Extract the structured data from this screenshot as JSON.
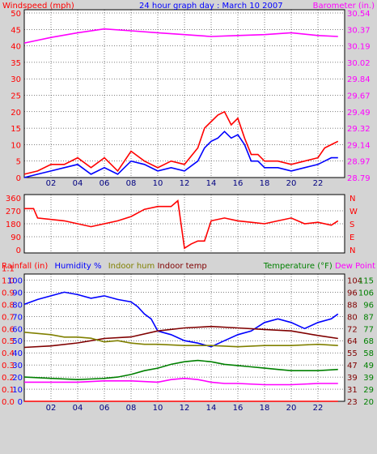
{
  "chart_data": [
    {
      "type": "line",
      "title": "24 hour graph day : March 10 2007",
      "left_label": "Windspeed (mph)",
      "right_label": "Barometer (in.)",
      "x_ticks": [
        "02",
        "04",
        "06",
        "08",
        "10",
        "12",
        "14",
        "16",
        "18",
        "20",
        "22"
      ],
      "left_ticks": [
        "0",
        "5",
        "10",
        "15",
        "20",
        "25",
        "30",
        "35",
        "40",
        "45",
        "50"
      ],
      "right_ticks": [
        "28.79",
        "28.97",
        "29.14",
        "29.32",
        "29.49",
        "29.67",
        "29.84",
        "30.02",
        "30.19",
        "30.37",
        "30.54"
      ],
      "ylim": [
        0,
        50
      ],
      "right_ylim": [
        28.79,
        30.54
      ],
      "series": [
        {
          "color": "#ff00ff",
          "x": [
            0,
            2,
            4,
            6,
            8,
            10,
            12,
            14,
            16,
            18,
            20,
            22,
            23.5
          ],
          "values": [
            30.22,
            30.28,
            30.33,
            30.37,
            30.35,
            30.33,
            30.31,
            30.29,
            30.3,
            30.31,
            30.33,
            30.3,
            30.29
          ]
        },
        {
          "color": "#ff0000",
          "x": [
            0,
            1,
            2,
            3,
            4,
            5,
            6,
            7,
            8,
            9,
            10,
            11,
            12,
            13,
            13.5,
            14,
            14.5,
            15,
            15.5,
            16,
            16.5,
            17,
            17.5,
            18,
            19,
            20,
            21,
            22,
            22.5,
            23,
            23.5
          ],
          "values": [
            1,
            2,
            4,
            4,
            6,
            3,
            6,
            2,
            8,
            5,
            3,
            5,
            4,
            9,
            15,
            17,
            19,
            20,
            16,
            18,
            12,
            7,
            7,
            5,
            5,
            4,
            5,
            6,
            9,
            10,
            11
          ]
        },
        {
          "color": "#0000ff",
          "x": [
            0,
            1,
            2,
            3,
            4,
            5,
            6,
            7,
            8,
            9,
            10,
            11,
            12,
            13,
            13.5,
            14,
            14.5,
            15,
            15.5,
            16,
            16.5,
            17,
            17.5,
            18,
            19,
            20,
            21,
            22,
            22.5,
            23,
            23.5
          ],
          "values": [
            0,
            1,
            2,
            3,
            4,
            1,
            3,
            1,
            5,
            4,
            2,
            3,
            2,
            5,
            9,
            11,
            12,
            14,
            12,
            13,
            10,
            5,
            5,
            3,
            3,
            2,
            3,
            4,
            5,
            6,
            6
          ]
        }
      ]
    },
    {
      "type": "line",
      "left_ticks": [
        "360",
        "270",
        "180",
        "90",
        "0"
      ],
      "right_ticks": [
        "N",
        "W",
        "S",
        "E",
        "N"
      ],
      "ylim": [
        0,
        360
      ],
      "series": [
        {
          "color": "#ff0000",
          "x": [
            0,
            0.7,
            1,
            3,
            5,
            7,
            8,
            9,
            10,
            11,
            11.5,
            12,
            12.5,
            13,
            13.5,
            14,
            15,
            16,
            17,
            18,
            19,
            20,
            21,
            22,
            23,
            23.5
          ],
          "values": [
            285,
            285,
            220,
            200,
            160,
            200,
            230,
            280,
            300,
            300,
            340,
            10,
            40,
            60,
            60,
            200,
            220,
            200,
            190,
            180,
            200,
            220,
            180,
            190,
            170,
            200
          ]
        }
      ]
    },
    {
      "type": "line",
      "legend_left": [
        {
          "label": "Rainfall (in)",
          "color": "#ff0000"
        },
        {
          "label": "Humidity %",
          "color": "#0000ff"
        },
        {
          "label": "Indoor hum",
          "color": "#808000"
        },
        {
          "label": "Indoor temp",
          "color": "#800000"
        }
      ],
      "legend_right": [
        {
          "label": "Temperature (°F)",
          "color": "#008000"
        },
        {
          "label": "Dew Point",
          "color": "#ff00ff"
        }
      ],
      "x_ticks": [
        "02",
        "04",
        "06",
        "08",
        "10",
        "12",
        "14",
        "16",
        "18",
        "20",
        "22"
      ],
      "rain_ticks": [
        "0.0",
        "0.1",
        "0.2",
        "0.3",
        "0.4",
        "0.5",
        "0.6",
        "0.7",
        "0.8",
        "0.9",
        "1.0",
        "1.1"
      ],
      "humidity_ticks": [
        "0",
        "10",
        "20",
        "30",
        "40",
        "50",
        "60",
        "70",
        "80",
        "90",
        "100"
      ],
      "indoor_temp_ticks": [
        "23",
        "31",
        "39",
        "47",
        "55",
        "64",
        "72",
        "80",
        "88",
        "96",
        "104"
      ],
      "temp_ticks": [
        "20",
        "29",
        "39",
        "49",
        "58",
        "68",
        "77",
        "87",
        "96",
        "106",
        "115"
      ],
      "series": [
        {
          "color": "#0000ff",
          "x": [
            0,
            1,
            2,
            3,
            4,
            5,
            6,
            7,
            8,
            8.5,
            9,
            9.5,
            10,
            11,
            12,
            13,
            14,
            15,
            16,
            17,
            18,
            19,
            20,
            21,
            22,
            23,
            23.5
          ],
          "values": [
            80,
            84,
            87,
            90,
            88,
            85,
            87,
            84,
            82,
            78,
            72,
            68,
            58,
            55,
            50,
            48,
            45,
            50,
            55,
            58,
            65,
            68,
            65,
            60,
            65,
            68,
            72
          ]
        },
        {
          "color": "#800000",
          "x": [
            0,
            2,
            4,
            6,
            8,
            10,
            12,
            14,
            16,
            18,
            20,
            22,
            23.5
          ],
          "values": [
            59,
            60,
            62,
            65,
            66,
            70,
            72,
            73,
            72,
            71,
            70,
            67,
            65
          ]
        },
        {
          "color": "#808000",
          "x": [
            0,
            1,
            2,
            3,
            4,
            5,
            6,
            7,
            8,
            9,
            10,
            12,
            14,
            16,
            18,
            20,
            22,
            23.5
          ],
          "values": [
            57,
            56,
            55,
            53,
            53,
            52,
            49,
            50,
            48,
            47,
            47,
            46,
            46,
            45,
            46,
            46,
            47,
            46
          ]
        },
        {
          "color": "#008000",
          "x": [
            0,
            2,
            4,
            6,
            7,
            8,
            9,
            10,
            11,
            12,
            13,
            14,
            15,
            16,
            17,
            18,
            19,
            20,
            21,
            22,
            23.5
          ],
          "values": [
            39,
            38,
            37,
            38,
            39,
            41,
            44,
            46,
            49,
            51,
            52,
            51,
            49,
            48,
            47,
            46,
            45,
            44,
            44,
            44,
            45
          ]
        },
        {
          "color": "#ff00ff",
          "x": [
            0,
            2,
            4,
            6,
            8,
            10,
            11,
            12,
            13,
            14,
            15,
            16,
            18,
            20,
            22,
            23.5
          ],
          "values": [
            35,
            35,
            35,
            36,
            36,
            35,
            37,
            38,
            37,
            35,
            34,
            34,
            33,
            33,
            34,
            34
          ]
        },
        {
          "color": "#ff0000",
          "x": [
            0,
            23.5
          ],
          "values": [
            0,
            0
          ]
        }
      ]
    }
  ]
}
